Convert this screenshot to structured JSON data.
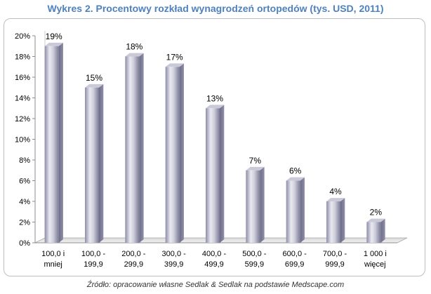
{
  "chart_data": {
    "type": "bar",
    "title": "Wykres 2. Procentowy rozkład wynagrodzeń ortopedów (tys. USD, 2011)",
    "categories": [
      [
        "100,0 i",
        "mniej"
      ],
      [
        "100,0 -",
        "199,9"
      ],
      [
        "200,0 -",
        "299,9"
      ],
      [
        "300,0 -",
        "399,9"
      ],
      [
        "400,0 -",
        "499,9"
      ],
      [
        "500,0 -",
        "599,9"
      ],
      [
        "600,0 -",
        "699,9"
      ],
      [
        "700,0 -",
        "999,9"
      ],
      [
        "1 000 i",
        "więcej"
      ]
    ],
    "values": [
      19,
      15,
      18,
      17,
      13,
      7,
      6,
      4,
      2
    ],
    "value_labels": [
      "19%",
      "15%",
      "18%",
      "17%",
      "13%",
      "7%",
      "6%",
      "4%",
      "2%"
    ],
    "y_ticks": [
      "0%",
      "2%",
      "4%",
      "6%",
      "8%",
      "10%",
      "12%",
      "14%",
      "16%",
      "18%",
      "20%"
    ],
    "ylim": [
      0,
      20
    ],
    "grid": false,
    "legend": "none",
    "bar_color": "#a9a9c2"
  },
  "source_note": "Źródło: opracowanie własne Sedlak & Sedlak na podstawie Medscape.com"
}
